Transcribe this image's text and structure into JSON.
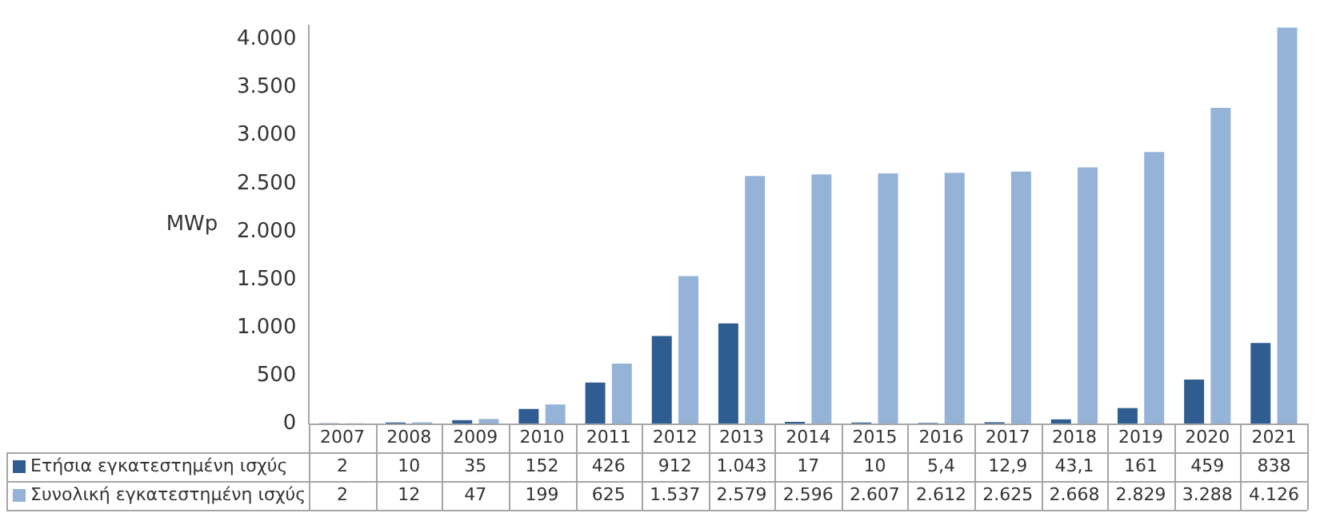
{
  "chart_data": {
    "type": "bar",
    "ylabel": "MWp",
    "categories": [
      "2007",
      "2008",
      "2009",
      "2010",
      "2011",
      "2012",
      "2013",
      "2014",
      "2015",
      "2016",
      "2017",
      "2018",
      "2019",
      "2020",
      "2021"
    ],
    "series": [
      {
        "name": "Ετήσια εγκατεστημένη ισχύς",
        "color": "#2f5d91",
        "values": [
          2,
          10,
          35,
          152,
          426,
          912,
          1043,
          17,
          10,
          5.4,
          12.9,
          43.1,
          161,
          459,
          838
        ],
        "value_labels": [
          "2",
          "10",
          "35",
          "152",
          "426",
          "912",
          "1.043",
          "17",
          "10",
          "5,4",
          "12,9",
          "43,1",
          "161",
          "459",
          "838"
        ]
      },
      {
        "name": "Συνολική εγκατεστημένη ισχύς",
        "color": "#95b3d7",
        "values": [
          2,
          12,
          47,
          199,
          625,
          1537,
          2579,
          2596,
          2607,
          2612,
          2625,
          2668,
          2829,
          3288,
          4126
        ],
        "value_labels": [
          "2",
          "12",
          "47",
          "199",
          "625",
          "1.537",
          "2.579",
          "2.596",
          "2.607",
          "2.612",
          "2.625",
          "2.668",
          "2.829",
          "3.288",
          "4.126"
        ]
      }
    ],
    "ylim": [
      0,
      4150
    ],
    "yticks": [
      {
        "value": 0,
        "label": "0"
      },
      {
        "value": 500,
        "label": "500"
      },
      {
        "value": 1000,
        "label": "1.000"
      },
      {
        "value": 1500,
        "label": "1.500"
      },
      {
        "value": 2000,
        "label": "2.000"
      },
      {
        "value": 2500,
        "label": "2.500"
      },
      {
        "value": 3000,
        "label": "3.000"
      },
      {
        "value": 3500,
        "label": "3.500"
      },
      {
        "value": 4000,
        "label": "4.000"
      }
    ],
    "grid": false,
    "legend": "bottom left"
  }
}
